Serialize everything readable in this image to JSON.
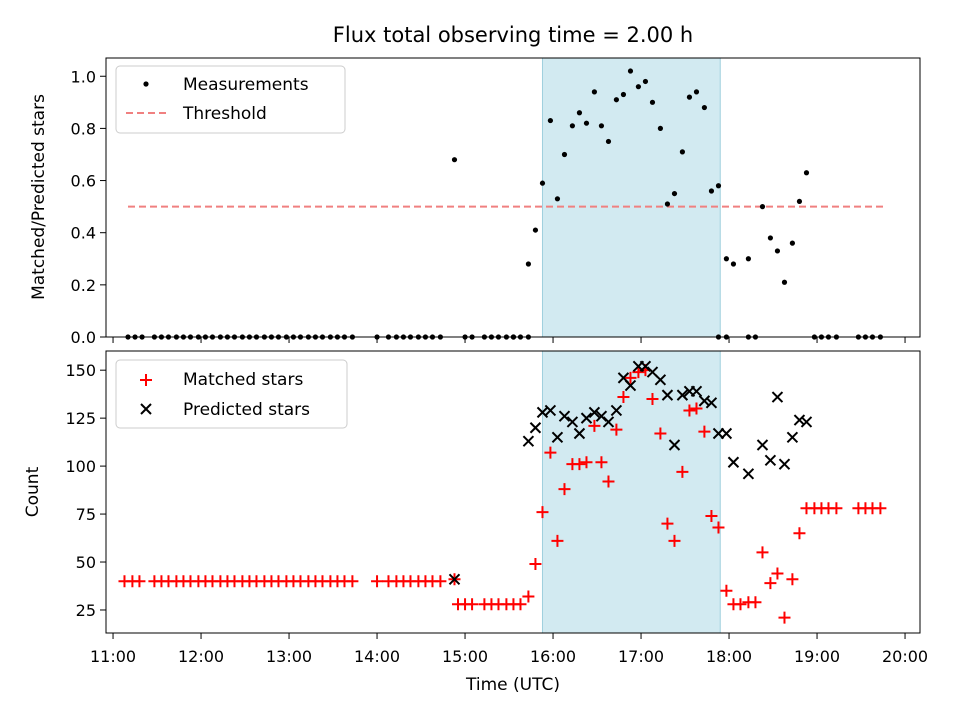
{
  "chart_data": {
    "type": "scatter",
    "title": "Flux total observing time = 2.00 h",
    "xlabel": "Time (UTC)",
    "xlim": [
      10.92,
      20.17
    ],
    "xticks": [
      {
        "v": 11,
        "label": "11:00"
      },
      {
        "v": 12,
        "label": "12:00"
      },
      {
        "v": 13,
        "label": "13:00"
      },
      {
        "v": 14,
        "label": "14:00"
      },
      {
        "v": 15,
        "label": "15:00"
      },
      {
        "v": 16,
        "label": "16:00"
      },
      {
        "v": 17,
        "label": "17:00"
      },
      {
        "v": 18,
        "label": "18:00"
      },
      {
        "v": 19,
        "label": "19:00"
      },
      {
        "v": 20,
        "label": "20:00"
      }
    ],
    "highlight_span": {
      "x_start": 15.88,
      "x_end": 17.9,
      "color": "#add8e6"
    },
    "panels": [
      {
        "ylabel": "Matched/Predicted stars",
        "ylim": [
          0.0,
          1.07
        ],
        "yticks": [
          "0.0",
          "0.2",
          "0.4",
          "0.6",
          "0.8",
          "1.0"
        ],
        "grid": false,
        "legend_position": "upper-left",
        "threshold": {
          "name": "Threshold",
          "y": 0.5,
          "x_start": 11.17,
          "x_end": 19.75,
          "color": "#f08080"
        },
        "series": [
          {
            "name": "Measurements",
            "marker": "dot",
            "color": "#000000",
            "points": [
              [
                11.17,
                0
              ],
              [
                11.25,
                0
              ],
              [
                11.33,
                0
              ],
              [
                11.47,
                0
              ],
              [
                11.55,
                0
              ],
              [
                11.63,
                0
              ],
              [
                11.72,
                0
              ],
              [
                11.8,
                0
              ],
              [
                11.88,
                0
              ],
              [
                11.97,
                0
              ],
              [
                12.05,
                0
              ],
              [
                12.13,
                0
              ],
              [
                12.22,
                0
              ],
              [
                12.3,
                0
              ],
              [
                12.38,
                0
              ],
              [
                12.47,
                0
              ],
              [
                12.55,
                0
              ],
              [
                12.63,
                0
              ],
              [
                12.72,
                0
              ],
              [
                12.8,
                0
              ],
              [
                12.88,
                0
              ],
              [
                12.97,
                0
              ],
              [
                13.05,
                0
              ],
              [
                13.13,
                0
              ],
              [
                13.22,
                0
              ],
              [
                13.3,
                0
              ],
              [
                13.38,
                0
              ],
              [
                13.47,
                0
              ],
              [
                13.55,
                0
              ],
              [
                13.63,
                0
              ],
              [
                13.72,
                0
              ],
              [
                14.0,
                0
              ],
              [
                14.13,
                0
              ],
              [
                14.22,
                0
              ],
              [
                14.3,
                0
              ],
              [
                14.38,
                0
              ],
              [
                14.47,
                0
              ],
              [
                14.55,
                0
              ],
              [
                14.63,
                0
              ],
              [
                14.72,
                0
              ],
              [
                14.88,
                0.68
              ],
              [
                15.0,
                0
              ],
              [
                15.08,
                0
              ],
              [
                15.22,
                0
              ],
              [
                15.3,
                0
              ],
              [
                15.38,
                0
              ],
              [
                15.47,
                0
              ],
              [
                15.55,
                0
              ],
              [
                15.63,
                0
              ],
              [
                15.72,
                0
              ],
              [
                15.55,
                0
              ],
              [
                15.72,
                0.28
              ],
              [
                15.8,
                0.41
              ],
              [
                15.88,
                0.59
              ],
              [
                15.97,
                0.83
              ],
              [
                16.05,
                0.53
              ],
              [
                16.13,
                0.7
              ],
              [
                16.22,
                0.81
              ],
              [
                16.3,
                0.86
              ],
              [
                16.38,
                0.82
              ],
              [
                16.47,
                0.94
              ],
              [
                16.55,
                0.81
              ],
              [
                16.63,
                0.75
              ],
              [
                16.72,
                0.91
              ],
              [
                16.8,
                0.93
              ],
              [
                16.88,
                1.02
              ],
              [
                16.97,
                0.96
              ],
              [
                17.05,
                0.98
              ],
              [
                17.13,
                0.9
              ],
              [
                17.22,
                0.8
              ],
              [
                17.3,
                0.51
              ],
              [
                17.38,
                0.55
              ],
              [
                17.47,
                0.71
              ],
              [
                17.55,
                0.92
              ],
              [
                17.63,
                0.94
              ],
              [
                17.72,
                0.88
              ],
              [
                17.8,
                0.56
              ],
              [
                17.88,
                0.58
              ],
              [
                17.97,
                0.3
              ],
              [
                18.05,
                0.28
              ],
              [
                18.22,
                0.3
              ],
              [
                18.38,
                0.5
              ],
              [
                18.47,
                0.38
              ],
              [
                18.55,
                0.33
              ],
              [
                18.63,
                0.21
              ],
              [
                18.72,
                0.36
              ],
              [
                18.8,
                0.52
              ],
              [
                18.88,
                0.63
              ],
              [
                18.22,
                0
              ],
              [
                18.3,
                0
              ],
              [
                18.97,
                0
              ],
              [
                19.05,
                0
              ],
              [
                19.13,
                0
              ],
              [
                19.22,
                0
              ],
              [
                19.47,
                0
              ],
              [
                19.55,
                0
              ],
              [
                19.63,
                0
              ],
              [
                19.72,
                0
              ],
              [
                17.88,
                0
              ],
              [
                17.97,
                0
              ]
            ]
          }
        ]
      },
      {
        "ylabel": "Count",
        "ylim": [
          13,
          160
        ],
        "yticks": [
          "25",
          "50",
          "75",
          "100",
          "125",
          "150"
        ],
        "grid": false,
        "legend_position": "upper-left",
        "series": [
          {
            "name": "Matched stars",
            "marker": "plus",
            "color": "#ff0000",
            "points": [
              [
                11.13,
                40
              ],
              [
                11.22,
                40
              ],
              [
                11.3,
                40
              ],
              [
                11.47,
                40
              ],
              [
                11.55,
                40
              ],
              [
                11.63,
                40
              ],
              [
                11.72,
                40
              ],
              [
                11.8,
                40
              ],
              [
                11.88,
                40
              ],
              [
                11.97,
                40
              ],
              [
                12.05,
                40
              ],
              [
                12.13,
                40
              ],
              [
                12.22,
                40
              ],
              [
                12.3,
                40
              ],
              [
                12.38,
                40
              ],
              [
                12.47,
                40
              ],
              [
                12.55,
                40
              ],
              [
                12.63,
                40
              ],
              [
                12.72,
                40
              ],
              [
                12.8,
                40
              ],
              [
                12.88,
                40
              ],
              [
                12.97,
                40
              ],
              [
                13.05,
                40
              ],
              [
                13.13,
                40
              ],
              [
                13.22,
                40
              ],
              [
                13.3,
                40
              ],
              [
                13.38,
                40
              ],
              [
                13.47,
                40
              ],
              [
                13.55,
                40
              ],
              [
                13.63,
                40
              ],
              [
                13.72,
                40
              ],
              [
                14.0,
                40
              ],
              [
                14.13,
                40
              ],
              [
                14.22,
                40
              ],
              [
                14.3,
                40
              ],
              [
                14.38,
                40
              ],
              [
                14.47,
                40
              ],
              [
                14.55,
                40
              ],
              [
                14.63,
                40
              ],
              [
                14.72,
                40
              ],
              [
                14.88,
                41
              ],
              [
                14.92,
                28
              ],
              [
                15.0,
                28
              ],
              [
                15.08,
                28
              ],
              [
                15.22,
                28
              ],
              [
                15.3,
                28
              ],
              [
                15.38,
                28
              ],
              [
                15.47,
                28
              ],
              [
                15.55,
                28
              ],
              [
                15.63,
                28
              ],
              [
                15.72,
                32
              ],
              [
                15.8,
                49
              ],
              [
                15.88,
                76
              ],
              [
                15.97,
                107
              ],
              [
                16.05,
                61
              ],
              [
                16.13,
                88
              ],
              [
                16.22,
                101
              ],
              [
                16.3,
                101
              ],
              [
                16.38,
                102
              ],
              [
                16.47,
                121
              ],
              [
                16.55,
                102
              ],
              [
                16.63,
                92
              ],
              [
                16.72,
                119
              ],
              [
                16.8,
                136
              ],
              [
                16.88,
                146
              ],
              [
                16.97,
                149
              ],
              [
                17.05,
                150
              ],
              [
                17.13,
                135
              ],
              [
                17.22,
                117
              ],
              [
                17.3,
                70
              ],
              [
                17.38,
                61
              ],
              [
                17.47,
                97
              ],
              [
                17.55,
                129
              ],
              [
                17.63,
                130
              ],
              [
                17.72,
                118
              ],
              [
                17.8,
                74
              ],
              [
                17.88,
                68
              ],
              [
                17.97,
                35
              ],
              [
                18.05,
                28
              ],
              [
                18.13,
                28
              ],
              [
                18.22,
                29
              ],
              [
                18.3,
                29
              ],
              [
                18.38,
                55
              ],
              [
                18.47,
                39
              ],
              [
                18.55,
                44
              ],
              [
                18.63,
                21
              ],
              [
                18.72,
                41
              ],
              [
                18.8,
                65
              ],
              [
                18.88,
                78
              ],
              [
                18.97,
                78
              ],
              [
                19.05,
                78
              ],
              [
                19.13,
                78
              ],
              [
                19.22,
                78
              ],
              [
                19.47,
                78
              ],
              [
                19.55,
                78
              ],
              [
                19.63,
                78
              ],
              [
                19.72,
                78
              ]
            ]
          },
          {
            "name": "Predicted stars",
            "marker": "x",
            "color": "#000000",
            "points": [
              [
                14.88,
                41
              ],
              [
                15.72,
                113
              ],
              [
                15.8,
                120
              ],
              [
                15.88,
                128
              ],
              [
                15.97,
                129
              ],
              [
                16.05,
                115
              ],
              [
                16.13,
                126
              ],
              [
                16.22,
                123
              ],
              [
                16.3,
                117
              ],
              [
                16.38,
                125
              ],
              [
                16.47,
                128
              ],
              [
                16.55,
                126
              ],
              [
                16.63,
                123
              ],
              [
                16.72,
                129
              ],
              [
                16.8,
                146
              ],
              [
                16.88,
                142
              ],
              [
                16.97,
                152
              ],
              [
                17.05,
                152
              ],
              [
                17.13,
                149
              ],
              [
                17.22,
                145
              ],
              [
                17.3,
                137
              ],
              [
                17.38,
                111
              ],
              [
                17.47,
                137
              ],
              [
                17.55,
                139
              ],
              [
                17.63,
                139
              ],
              [
                17.72,
                134
              ],
              [
                17.8,
                133
              ],
              [
                17.88,
                117
              ],
              [
                17.97,
                117
              ],
              [
                18.05,
                102
              ],
              [
                18.22,
                96
              ],
              [
                18.38,
                111
              ],
              [
                18.47,
                103
              ],
              [
                18.55,
                136
              ],
              [
                18.63,
                101
              ],
              [
                18.72,
                115
              ],
              [
                18.8,
                124
              ],
              [
                18.88,
                123
              ]
            ]
          }
        ]
      }
    ]
  }
}
